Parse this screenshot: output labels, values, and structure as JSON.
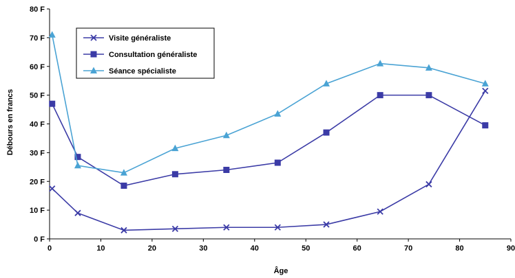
{
  "chart_data": {
    "type": "line",
    "title": "",
    "xlabel": "Âge",
    "ylabel": "Débours en francs",
    "xlim": [
      0,
      90
    ],
    "ylim": [
      0,
      80
    ],
    "x_ticks": [
      "0",
      "10",
      "20",
      "30",
      "40",
      "50",
      "60",
      "70",
      "80",
      "90"
    ],
    "y_ticks": [
      "0 F",
      "10 F",
      "20 F",
      "30 F",
      "40 F",
      "50 F",
      "60 F",
      "70 F",
      "80 F"
    ],
    "grid": false,
    "legend_position": "top-left",
    "series": [
      {
        "name": "Visite généraliste",
        "marker": "x",
        "color": "#3b3ba6",
        "x": [
          0.5,
          5.5,
          14.5,
          24.5,
          34.5,
          44.5,
          54,
          64.5,
          74,
          85
        ],
        "y": [
          17.5,
          9,
          3,
          3.5,
          4,
          4,
          5,
          9.5,
          19,
          51.5
        ]
      },
      {
        "name": "Consultation généraliste",
        "marker": "square",
        "color": "#3b3ba6",
        "x": [
          0.5,
          5.5,
          14.5,
          24.5,
          34.5,
          44.5,
          54,
          64.5,
          74,
          85
        ],
        "y": [
          47,
          28.5,
          18.5,
          22.5,
          24,
          26.5,
          37,
          50,
          50,
          39.5
        ]
      },
      {
        "name": "Séance spécialiste",
        "marker": "triangle",
        "color": "#4aa3d4",
        "x": [
          0.5,
          5.5,
          14.5,
          24.5,
          34.5,
          44.5,
          54,
          64.5,
          74,
          85
        ],
        "y": [
          71,
          25.5,
          23,
          31.5,
          36,
          43.5,
          54,
          61,
          59.5,
          54
        ]
      }
    ]
  }
}
